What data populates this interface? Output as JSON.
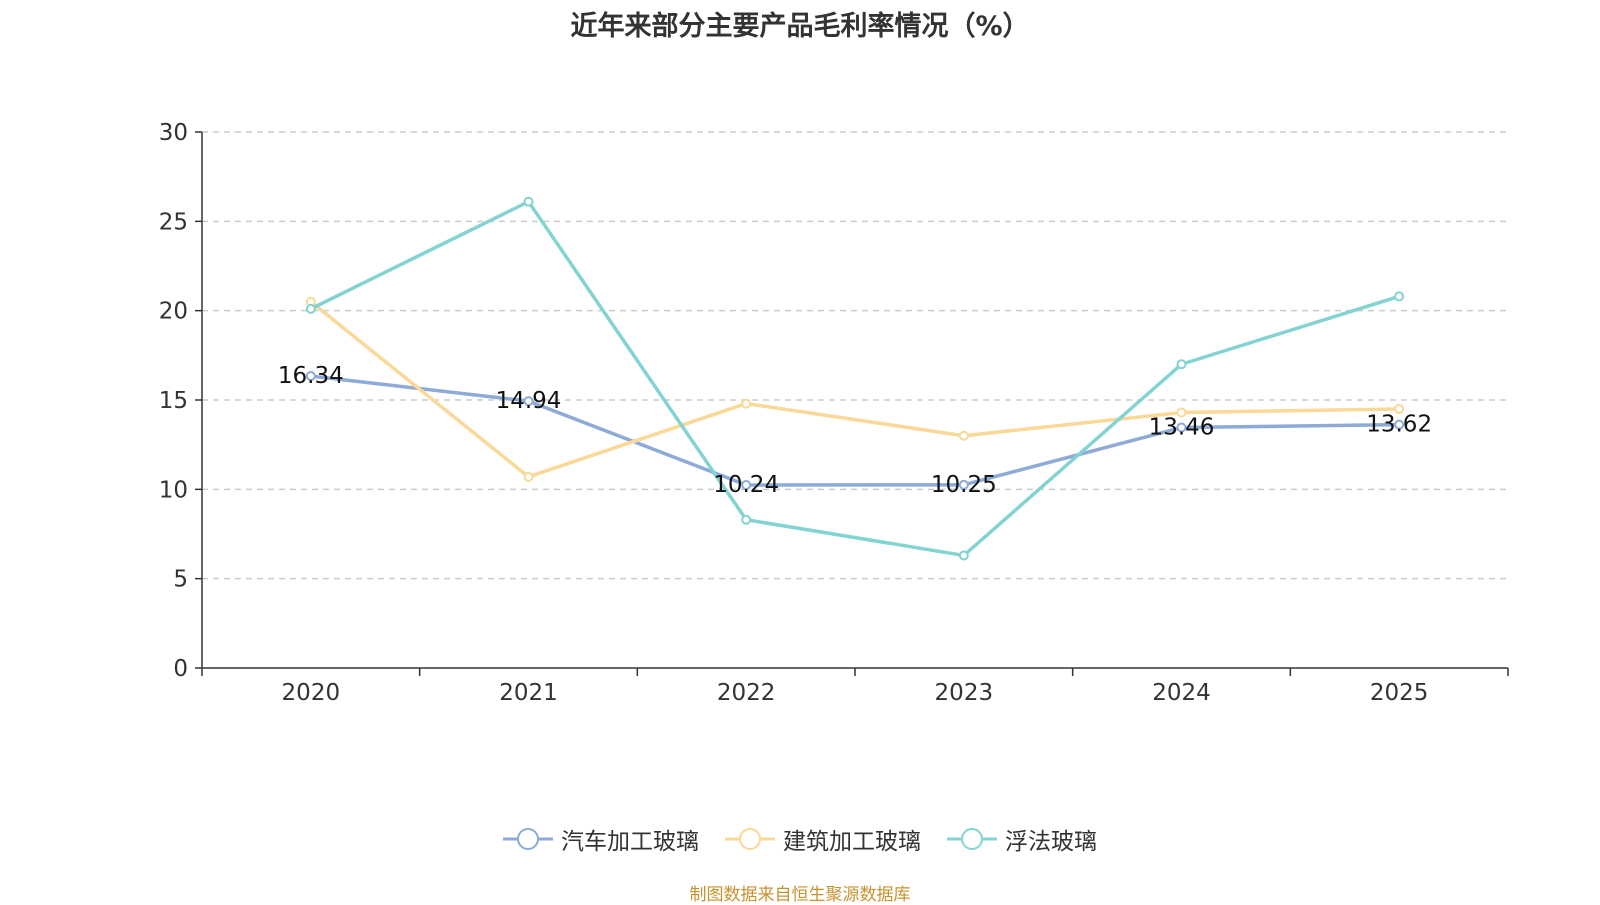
{
  "chart_data": {
    "type": "line",
    "title": "近年来部分主要产品毛利率情况（%）",
    "categories": [
      "2020",
      "2021",
      "2022",
      "2023",
      "2024",
      "2025"
    ],
    "ylim": [
      0,
      30
    ],
    "yticks": [
      0,
      5,
      10,
      15,
      20,
      25,
      30
    ],
    "grid": true,
    "legend_position": "bottom-center",
    "series": [
      {
        "name": "汽车加工玻璃",
        "color": "#8eaad7",
        "values": [
          16.34,
          14.94,
          10.24,
          10.25,
          13.46,
          13.62
        ],
        "show_labels": true
      },
      {
        "name": "建筑加工玻璃",
        "color": "#f9d898",
        "values": [
          20.5,
          10.7,
          14.8,
          13.0,
          14.3,
          14.5
        ],
        "show_labels": false
      },
      {
        "name": "浮法玻璃",
        "color": "#82d3d2",
        "values": [
          20.1,
          26.1,
          8.3,
          6.3,
          17.0,
          20.8
        ],
        "show_labels": false
      }
    ]
  },
  "source_note": "制图数据来自恒生聚源数据库"
}
